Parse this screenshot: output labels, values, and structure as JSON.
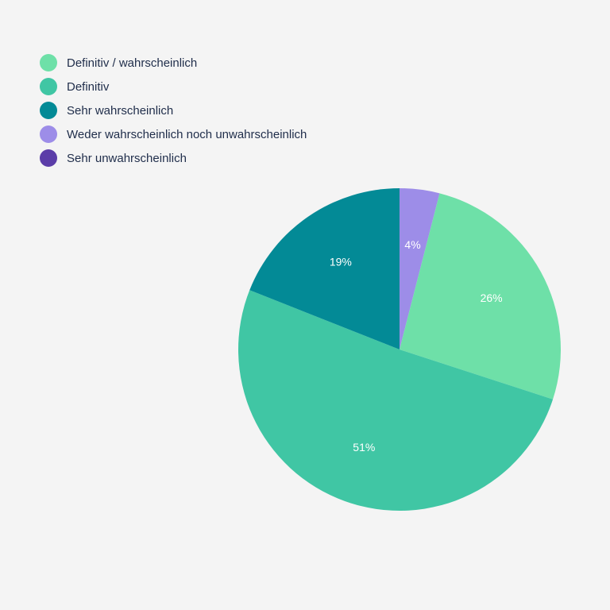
{
  "chart_data": {
    "type": "pie",
    "title": "",
    "legend_position": "top-left",
    "start_angle_deg": 0,
    "direction": "clockwise",
    "legend": [
      {
        "label": "Definitiv / wahrscheinlich",
        "color": "#6ee0a8"
      },
      {
        "label": "Definitiv",
        "color": "#40c6a4"
      },
      {
        "label": "Sehr wahrscheinlich",
        "color": "#038a96"
      },
      {
        "label": "Weder wahrscheinlich noch unwahrscheinlich",
        "color": "#9d8de8"
      },
      {
        "label": "Sehr unwahrscheinlich",
        "color": "#5b3da8"
      }
    ],
    "slices": [
      {
        "category": "Weder wahrscheinlich noch unwahrscheinlich",
        "value": 4,
        "label": "4%",
        "color": "#9d8de8"
      },
      {
        "category": "Definitiv / wahrscheinlich",
        "value": 26,
        "label": "26%",
        "color": "#6ee0a8"
      },
      {
        "category": "Definitiv",
        "value": 51,
        "label": "51%",
        "color": "#40c6a4"
      },
      {
        "category": "Sehr wahrscheinlich",
        "value": 19,
        "label": "19%",
        "color": "#038a96"
      }
    ]
  }
}
